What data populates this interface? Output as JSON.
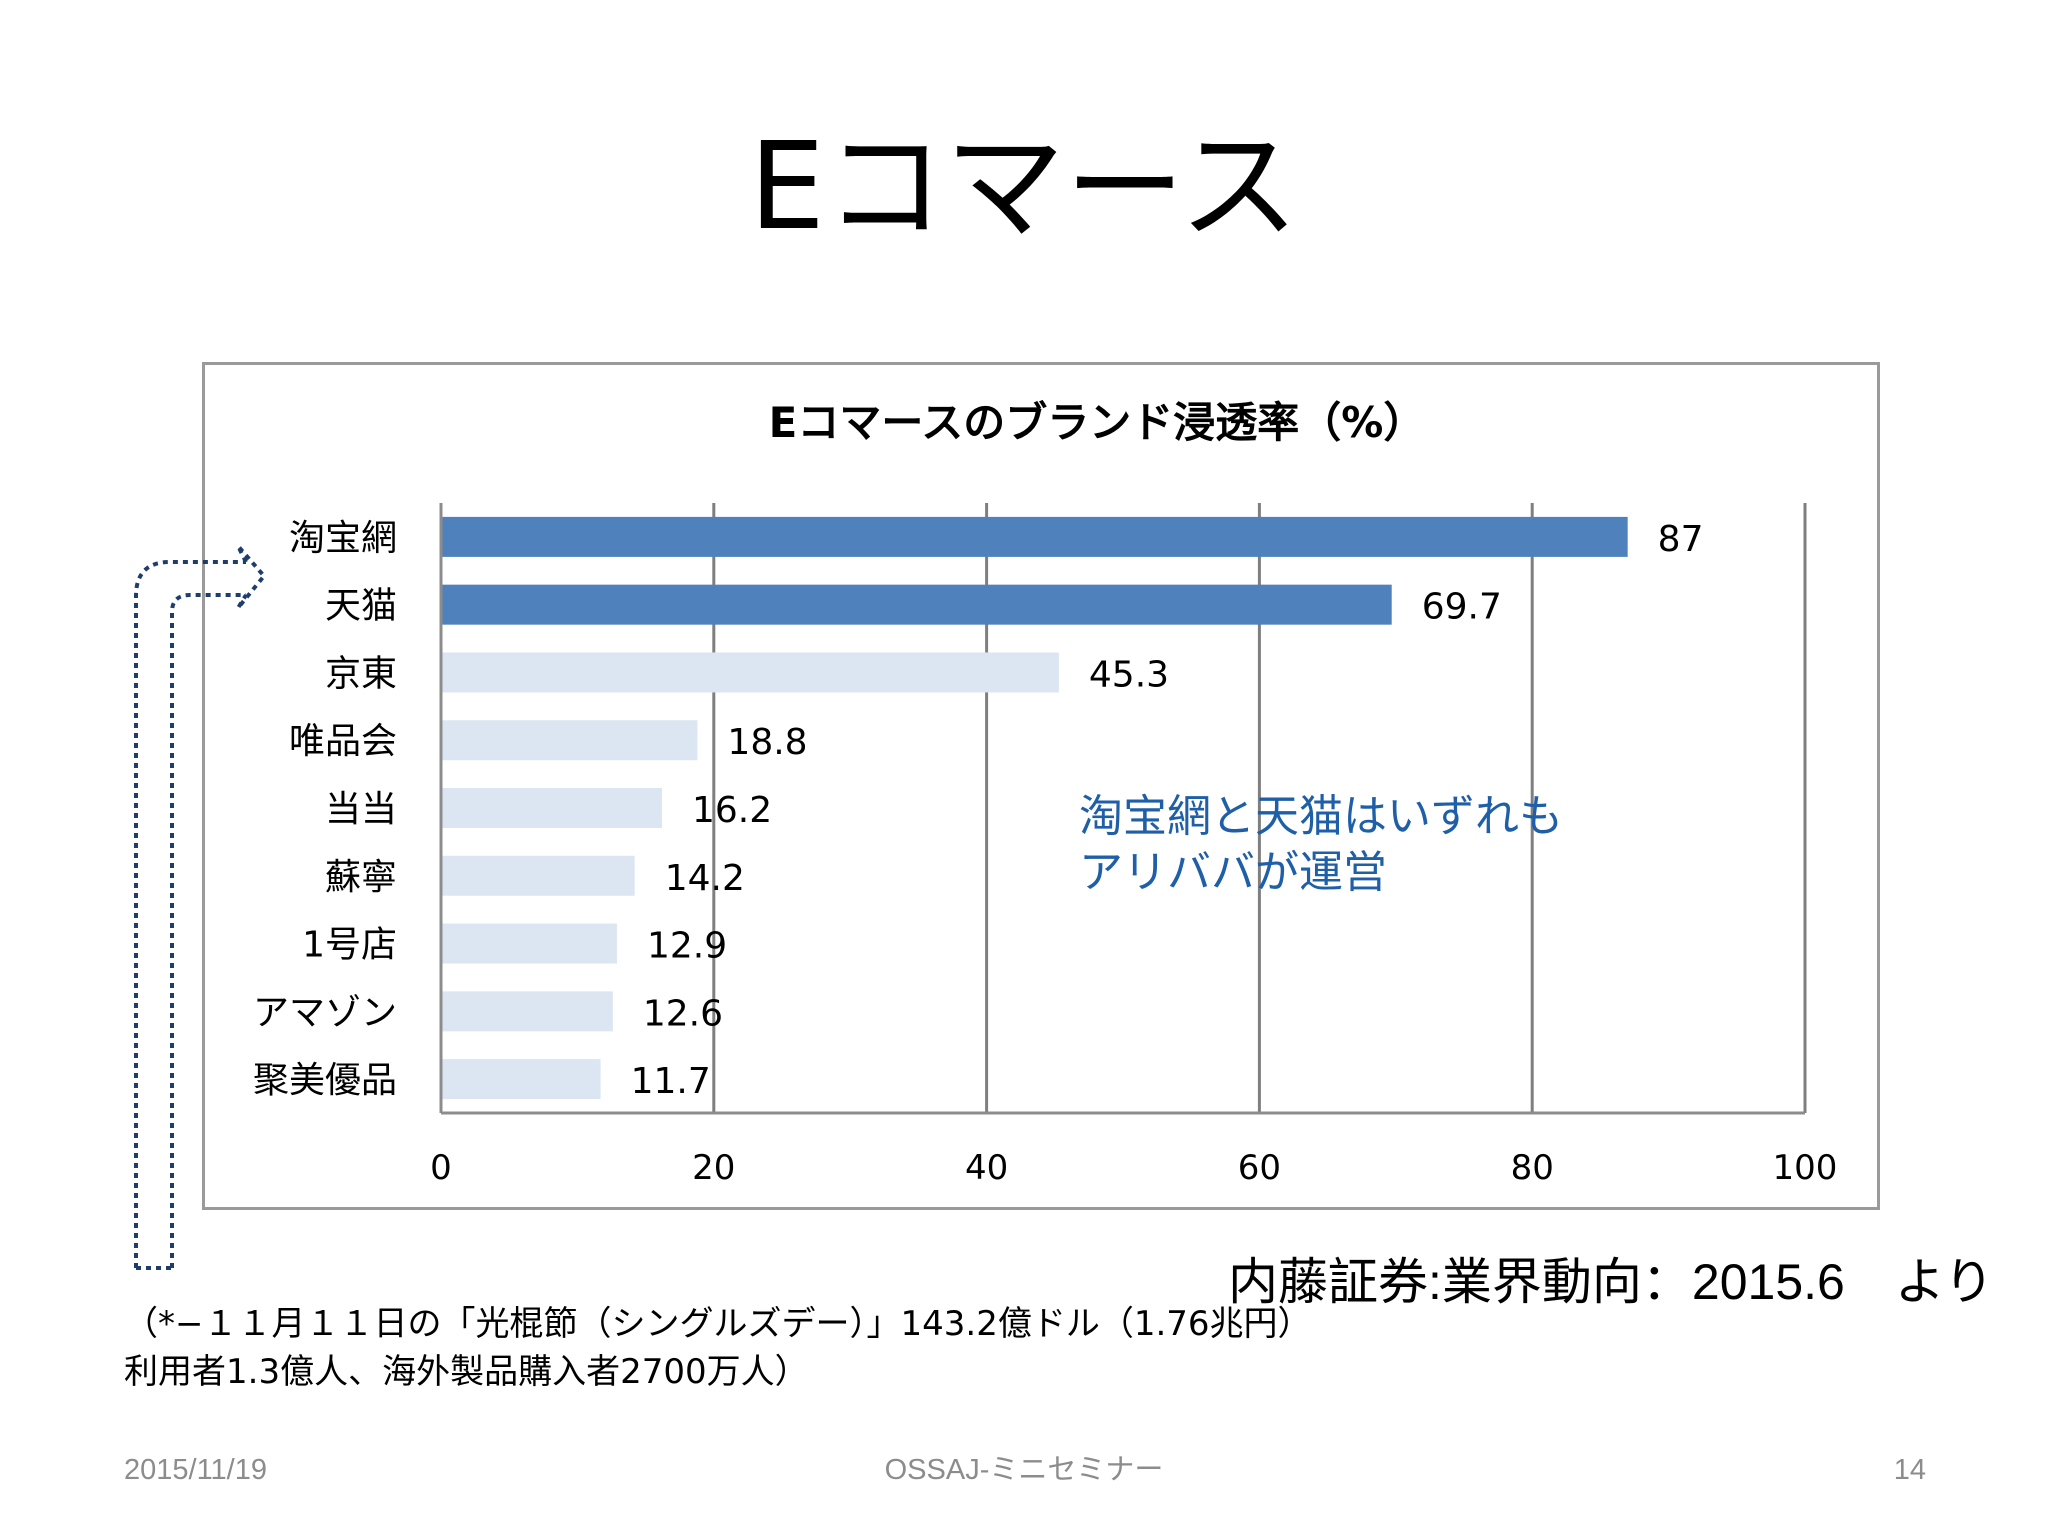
{
  "slide": {
    "title": "Eコマース",
    "source_note": "内藤証券:業界動向：2015.6　より",
    "footnote_line1": "（*−１１月１１日の「光棍節（シングルズデー）」143.2億ドル（1.76兆円）",
    "footnote_line2": "利用者1.3億人、海外製品購入者2700万人）",
    "footer_date": "2015/11/19",
    "footer_center": "OSSAJ-ミニセミナー",
    "page_number": "14"
  },
  "chart_data": {
    "type": "bar",
    "orientation": "horizontal",
    "title": "Eコマースのブランド浸透率（%）",
    "categories": [
      "淘宝網",
      "天猫",
      "京東",
      "唯品会",
      "当当",
      "蘇寧",
      "1号店",
      "アマゾン",
      "聚美優品"
    ],
    "values": [
      87,
      69.7,
      45.3,
      18.8,
      16.2,
      14.2,
      12.9,
      12.6,
      11.7
    ],
    "value_labels": [
      "87",
      "69.7",
      "45.3",
      "18.8",
      "16.2",
      "14.2",
      "12.9",
      "12.6",
      "11.7"
    ],
    "xlim": [
      0,
      100
    ],
    "x_ticks": [
      0,
      20,
      40,
      60,
      80,
      100
    ],
    "x_tick_labels": [
      "0",
      "20",
      "40",
      "60",
      "80",
      "100"
    ],
    "grid": true,
    "highlighted_count": 2,
    "colors": {
      "highlight": "#4f81bd",
      "normal": "#dce6f2",
      "grid": "#7f7f7f",
      "annotation": "#1f5fa8",
      "arrow": "#1f3d6b"
    },
    "annotation_line1": "淘宝網と天猫はいずれも",
    "annotation_line2": "アリババが運営"
  }
}
